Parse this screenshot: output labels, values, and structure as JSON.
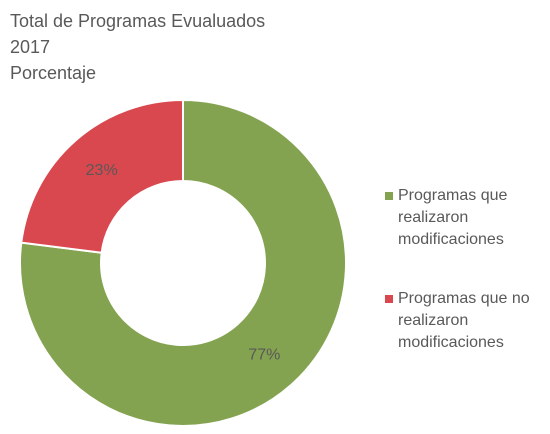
{
  "chart_data": {
    "type": "donut",
    "title": [
      "Total de Programas Evualuados",
      "2017",
      "Porcentaje"
    ],
    "categories": [
      "Programas que realizaron modificaciones",
      "Programas que no realizaron modificaciones"
    ],
    "values": [
      77,
      23
    ],
    "value_labels": [
      "77%",
      "23%"
    ],
    "colors": [
      "#84a350",
      "#d9474f"
    ],
    "legend": "right"
  }
}
